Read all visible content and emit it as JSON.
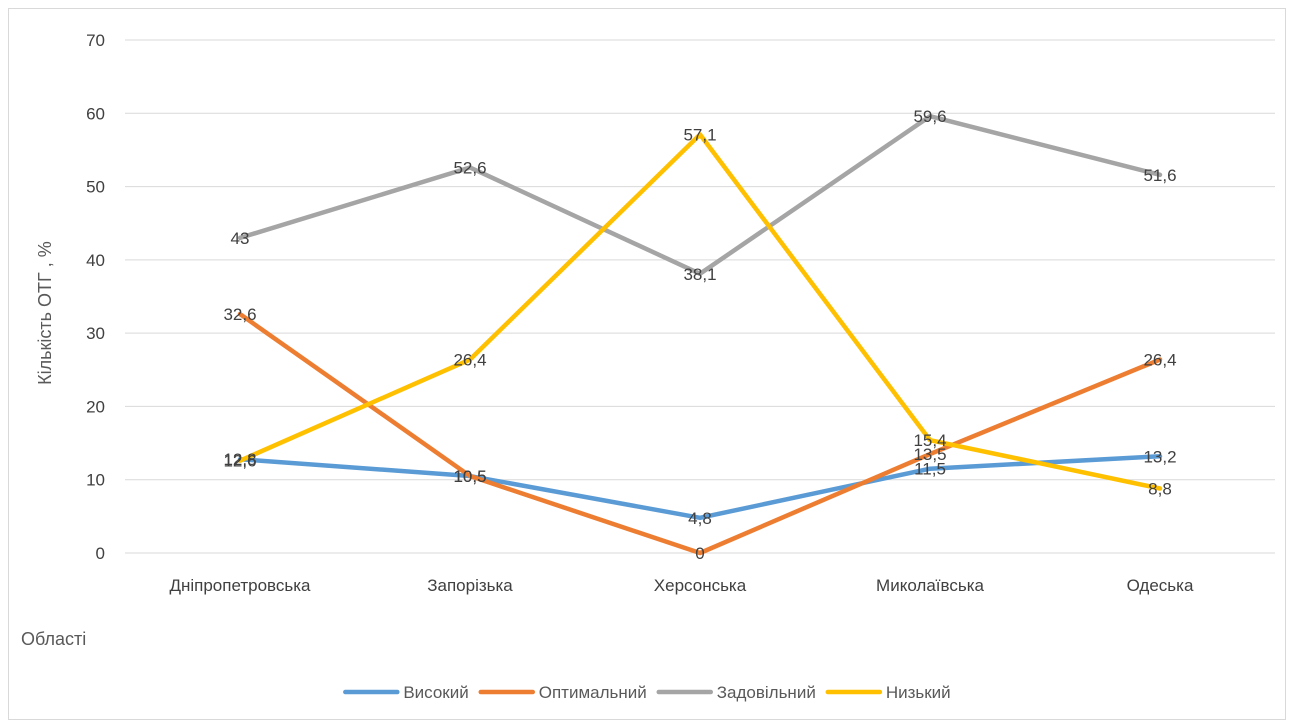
{
  "chart_data": {
    "type": "line",
    "categories": [
      "Дніпропетровська",
      "Запорізька",
      "Херсонська",
      "Миколаївська",
      "Одеська"
    ],
    "ylabel": "Кількість ОТГ , %",
    "xlabel": "Області",
    "ylim": [
      0,
      70
    ],
    "yticks": [
      0,
      10,
      20,
      30,
      40,
      50,
      60,
      70
    ],
    "grid": true,
    "legend_position": "bottom",
    "series": [
      {
        "name": "Високий",
        "color": "#5b9bd5",
        "values": [
          12.8,
          10.5,
          4.8,
          11.5,
          13.2
        ],
        "labels": [
          "12,8",
          "10,5",
          "4,8",
          "11,5",
          "13,2"
        ]
      },
      {
        "name": "Оптимальний",
        "color": "#ed7d31",
        "values": [
          32.6,
          10.5,
          0,
          13.5,
          26.4
        ],
        "labels": [
          "32,6",
          "10,5",
          "0",
          "13,5",
          "26,4"
        ]
      },
      {
        "name": "Задовільний",
        "color": "#a5a5a5",
        "values": [
          43,
          52.6,
          38.1,
          59.6,
          51.6
        ],
        "labels": [
          "43",
          "52,6",
          "38,1",
          "59,6",
          "51,6"
        ]
      },
      {
        "name": "Низький",
        "color": "#ffc000",
        "values": [
          12.6,
          26.4,
          57.1,
          15.4,
          8.8
        ],
        "labels": [
          "12,6",
          "26,4",
          "57,1",
          "15,4",
          "8,8"
        ]
      }
    ]
  }
}
